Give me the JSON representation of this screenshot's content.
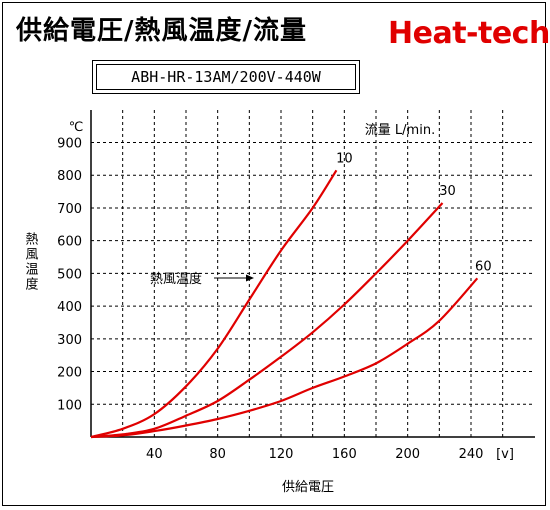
{
  "header": {
    "title": "供給電圧/熱風温度/流量",
    "brand": "Heat-tech",
    "model": "ABH-HR-13AM/200V-440W"
  },
  "colors": {
    "line": "#e00000",
    "brand": "#e00000",
    "grid": "#000000"
  },
  "chart_data": {
    "type": "line",
    "title": "供給電圧/熱風温度/流量",
    "xlabel": "供給電圧",
    "x_unit": "[v]",
    "ylabel": "熱風温度",
    "y_unit": "℃",
    "xlim": [
      0,
      260
    ],
    "ylim": [
      0,
      900
    ],
    "x_ticks": [
      40,
      80,
      120,
      160,
      200,
      240
    ],
    "y_ticks": [
      100,
      200,
      300,
      400,
      500,
      600,
      700,
      800,
      900
    ],
    "grid": true,
    "legend_title": "流量 L/min.",
    "annotation": "熱風温度",
    "series": [
      {
        "name": "10",
        "x": [
          0,
          20,
          40,
          60,
          80,
          100,
          120,
          140,
          155
        ],
        "y": [
          0,
          25,
          70,
          155,
          270,
          420,
          570,
          700,
          815
        ]
      },
      {
        "name": "30",
        "x": [
          0,
          20,
          40,
          60,
          80,
          100,
          120,
          140,
          160,
          180,
          200,
          222
        ],
        "y": [
          0,
          8,
          25,
          65,
          110,
          175,
          245,
          320,
          405,
          500,
          600,
          715
        ]
      },
      {
        "name": "60",
        "x": [
          0,
          20,
          40,
          60,
          80,
          100,
          120,
          140,
          160,
          180,
          200,
          220,
          244
        ],
        "y": [
          0,
          5,
          18,
          35,
          55,
          80,
          110,
          150,
          185,
          225,
          285,
          355,
          485
        ]
      }
    ]
  }
}
